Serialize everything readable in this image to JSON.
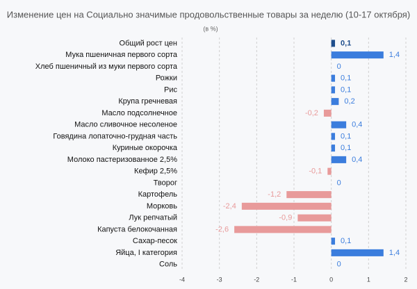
{
  "chart_data": {
    "type": "hbar",
    "title": "Изменение цен на Социально значимые продовольственные товары за неделю (10-17 октября)",
    "subtitle": "(в %)",
    "categories": [
      "Общий рост цен",
      "Мука пшеничная первого сорта",
      "Хлеб пшеничный из муки первого сорта",
      "Рожки",
      "Рис",
      "Крупа гречневая",
      "Масло подсолнечное",
      "Масло сливочное несоленое",
      "Говядина лопаточно-грудная часть",
      "Куриные окорочка",
      "Молоко пастеризованное 2,5%",
      "Кефир 2,5%",
      "Творог",
      "Картофель",
      "Морковь",
      "Лук репчатый",
      "Капуста белокочанная",
      "Сахар-песок",
      "Яйца, I категория",
      "Соль"
    ],
    "values": [
      0.1,
      1.4,
      0,
      0.1,
      0.1,
      0.2,
      -0.2,
      0.4,
      0.1,
      0.1,
      0.4,
      -0.1,
      0,
      -1.2,
      -2.4,
      -0.9,
      -2.6,
      0.1,
      1.4,
      0
    ],
    "value_labels": [
      "0,1",
      "1,4",
      "0",
      "0,1",
      "0,1",
      "0,2",
      "-0,2",
      "0,4",
      "0,1",
      "0,1",
      "0,4",
      "-0,1",
      "0",
      "-1,2",
      "-2,4",
      "-0,9",
      "-2,6",
      "0,1",
      "1,4",
      "0"
    ],
    "colors": [
      "#1f4e8c",
      "#3b7ddd",
      "#3b7ddd",
      "#3b7ddd",
      "#3b7ddd",
      "#3b7ddd",
      "#e89a9a",
      "#3b7ddd",
      "#3b7ddd",
      "#3b7ddd",
      "#3b7ddd",
      "#e89a9a",
      "#3b7ddd",
      "#e89a9a",
      "#e89a9a",
      "#e89a9a",
      "#e89a9a",
      "#3b7ddd",
      "#3b7ddd",
      "#3b7ddd"
    ],
    "xlim": [
      -4,
      2
    ],
    "xticks": [
      -4,
      -3,
      -2,
      -1,
      0,
      1,
      2
    ],
    "grid": true
  }
}
